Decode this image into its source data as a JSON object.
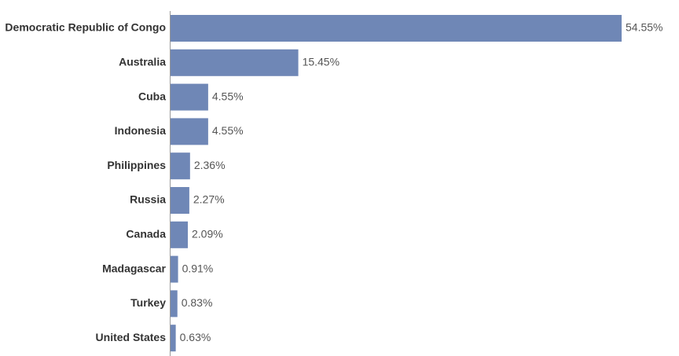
{
  "chart_data": {
    "type": "bar",
    "orientation": "horizontal",
    "categories": [
      "Democratic Republic of Congo",
      "Australia",
      "Cuba",
      "Indonesia",
      "Philippines",
      "Russia",
      "Canada",
      "Madagascar",
      "Turkey",
      "United States"
    ],
    "values": [
      54.55,
      15.45,
      4.55,
      4.55,
      2.36,
      2.27,
      2.09,
      0.91,
      0.83,
      0.63
    ],
    "value_labels": [
      "54.55%",
      "15.45%",
      "4.55%",
      "4.55%",
      "2.36%",
      "2.27%",
      "2.09%",
      "0.91%",
      "0.83%",
      "0.63%"
    ],
    "color": "#6f87b6"
  }
}
